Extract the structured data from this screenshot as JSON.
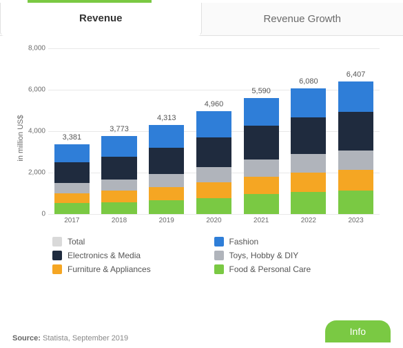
{
  "tabs": {
    "active": "Revenue",
    "inactive": "Revenue Growth"
  },
  "chart": {
    "type": "stacked-bar",
    "ylabel": "in million US$",
    "ylim": [
      0,
      8000
    ],
    "ytick_step": 2000,
    "yticks": [
      0,
      2000,
      4000,
      6000,
      8000
    ],
    "ytick_labels": [
      "0",
      "2,000",
      "4,000",
      "6,000",
      "8,000"
    ],
    "grid_color": "#e8e8e8",
    "background_color": "#ffffff",
    "label_fontsize": 11,
    "tick_fontsize": 10,
    "bar_width": 0.82,
    "categories": [
      "2017",
      "2018",
      "2019",
      "2020",
      "2021",
      "2022",
      "2023"
    ],
    "totals": [
      3381,
      3773,
      4313,
      4960,
      5590,
      6080,
      6407
    ],
    "total_labels": [
      "3,381",
      "3,773",
      "4,313",
      "4,960",
      "5,590",
      "6,080",
      "6,407"
    ],
    "series": [
      {
        "name": "Food & Personal Care",
        "color": "#7ac943",
        "values": [
          520,
          580,
          660,
          780,
          960,
          1060,
          1120
        ]
      },
      {
        "name": "Furniture & Appliances",
        "color": "#f5a623",
        "values": [
          480,
          540,
          630,
          740,
          850,
          940,
          1000
        ]
      },
      {
        "name": "Toys, Hobby & DIY",
        "color": "#b0b4bb",
        "values": [
          500,
          556,
          636,
          732,
          826,
          898,
          946
        ]
      },
      {
        "name": "Electronics & Media",
        "color": "#1f2b3e",
        "values": [
          990,
          1105,
          1263,
          1452,
          1637,
          1780,
          1875
        ]
      },
      {
        "name": "Fashion",
        "color": "#2f7ed8",
        "values": [
          891,
          992,
          1124,
          1256,
          1317,
          1402,
          1466
        ]
      }
    ]
  },
  "legend": {
    "items": [
      {
        "label": "Total",
        "color": "#d9d9d9"
      },
      {
        "label": "Fashion",
        "color": "#2f7ed8"
      },
      {
        "label": "Electronics & Media",
        "color": "#1f2b3e"
      },
      {
        "label": "Toys, Hobby & DIY",
        "color": "#b0b4bb"
      },
      {
        "label": "Furniture & Appliances",
        "color": "#f5a623"
      },
      {
        "label": "Food & Personal Care",
        "color": "#7ac943"
      }
    ]
  },
  "source": {
    "prefix": "Source:",
    "text": "Statista, September 2019"
  },
  "info_button": "Info",
  "colors": {
    "accent": "#7ac943",
    "text": "#555555",
    "muted": "#888888"
  }
}
